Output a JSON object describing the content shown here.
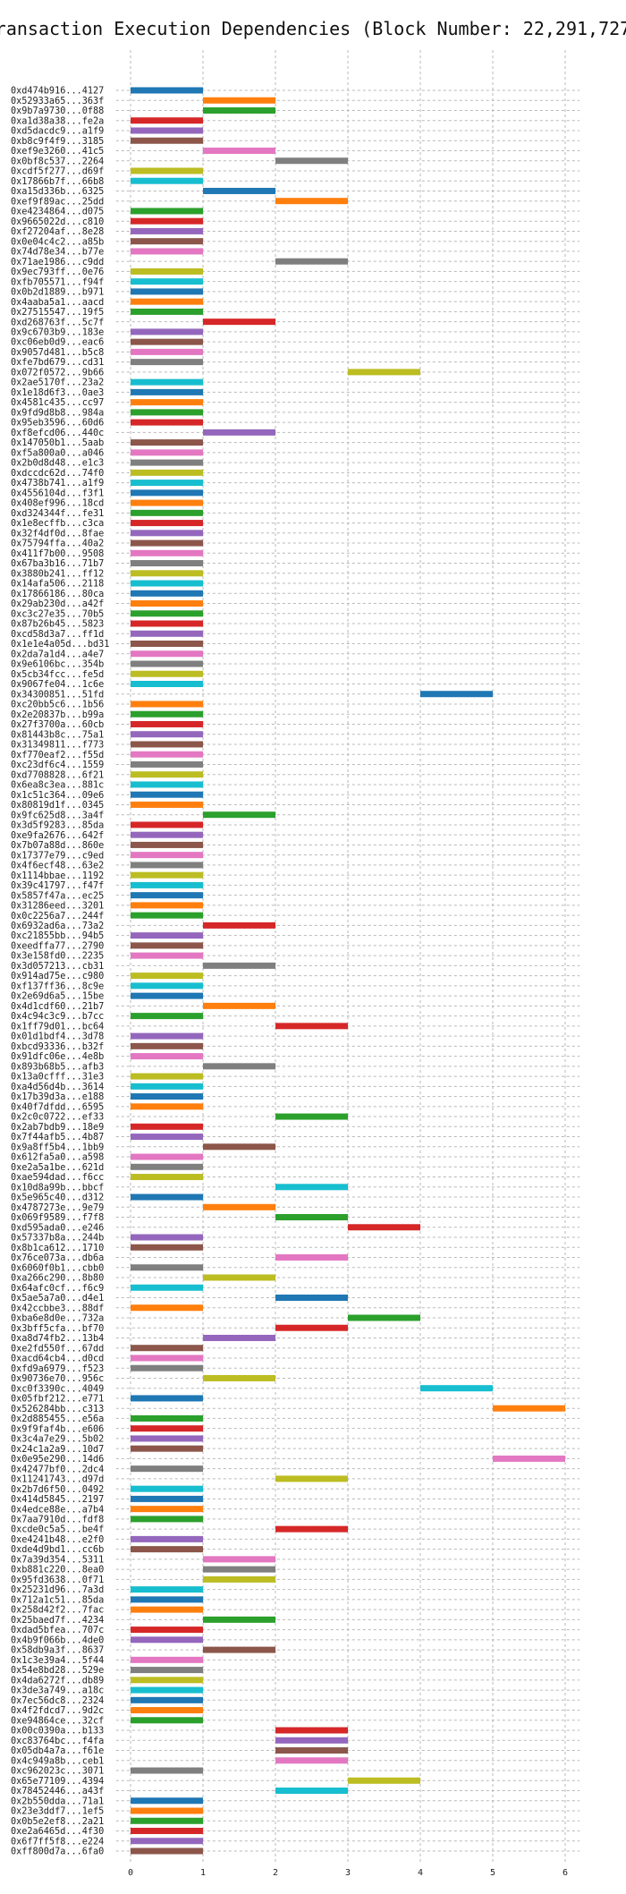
{
  "chart_data": {
    "type": "bar",
    "orientation": "horizontal-gantt",
    "title": "Transaction Execution Dependencies (Block Number: 22,291,727)",
    "xlabel": "",
    "ylabel": "",
    "xlim": [
      -0.2,
      6.2
    ],
    "xticks": [
      0,
      1,
      2,
      3,
      4,
      5,
      6
    ],
    "grid": true,
    "legend": "none",
    "colors": [
      "#1f77b4",
      "#ff7f0e",
      "#2ca02c",
      "#d62728",
      "#9467bd",
      "#8c564b",
      "#e377c2",
      "#7f7f7f",
      "#bcbd22",
      "#17becf"
    ],
    "transactions": [
      {
        "label": "0xd474b916...4127",
        "start": 0,
        "color": "#1f77b4"
      },
      {
        "label": "0x52933a65...363f",
        "start": 1,
        "color": "#ff7f0e"
      },
      {
        "label": "0x9b7a9730...0f88",
        "start": 1,
        "color": "#2ca02c"
      },
      {
        "label": "0xa1d38a38...fe2a",
        "start": 0,
        "color": "#d62728"
      },
      {
        "label": "0xd5dacdc9...a1f9",
        "start": 0,
        "color": "#9467bd"
      },
      {
        "label": "0xb8c9f4f9...3185",
        "start": 0,
        "color": "#8c564b"
      },
      {
        "label": "0xef9e3260...41c5",
        "start": 1,
        "color": "#e377c2"
      },
      {
        "label": "0x0bf8c537...2264",
        "start": 2,
        "color": "#7f7f7f"
      },
      {
        "label": "0xcdf5f277...d69f",
        "start": 0,
        "color": "#bcbd22"
      },
      {
        "label": "0x17866b7f...66b8",
        "start": 0,
        "color": "#17becf"
      },
      {
        "label": "0xa15d336b...6325",
        "start": 1,
        "color": "#1f77b4"
      },
      {
        "label": "0xef9f89ac...25dd",
        "start": 2,
        "color": "#ff7f0e"
      },
      {
        "label": "0xe4234864...d075",
        "start": 0,
        "color": "#2ca02c"
      },
      {
        "label": "0x9665022d...c810",
        "start": 0,
        "color": "#d62728"
      },
      {
        "label": "0xf27204af...8e28",
        "start": 0,
        "color": "#9467bd"
      },
      {
        "label": "0x0e04c4c2...a85b",
        "start": 0,
        "color": "#8c564b"
      },
      {
        "label": "0x74d78e34...b77e",
        "start": 0,
        "color": "#e377c2"
      },
      {
        "label": "0x71ae1986...c9dd",
        "start": 2,
        "color": "#7f7f7f"
      },
      {
        "label": "0x9ec793ff...0e76",
        "start": 0,
        "color": "#bcbd22"
      },
      {
        "label": "0xfb705571...f94f",
        "start": 0,
        "color": "#17becf"
      },
      {
        "label": "0x0b2d1889...b971",
        "start": 0,
        "color": "#1f77b4"
      },
      {
        "label": "0x4aaba5a1...aacd",
        "start": 0,
        "color": "#ff7f0e"
      },
      {
        "label": "0x27515547...19f5",
        "start": 0,
        "color": "#2ca02c"
      },
      {
        "label": "0xd268763f...5c7f",
        "start": 1,
        "color": "#d62728"
      },
      {
        "label": "0x9c6703b9...183e",
        "start": 0,
        "color": "#9467bd"
      },
      {
        "label": "0xc06eb0d9...eac6",
        "start": 0,
        "color": "#8c564b"
      },
      {
        "label": "0x9057d481...b5c8",
        "start": 0,
        "color": "#e377c2"
      },
      {
        "label": "0xfe7bd679...cd31",
        "start": 0,
        "color": "#7f7f7f"
      },
      {
        "label": "0x072f0572...9b66",
        "start": 3,
        "color": "#bcbd22"
      },
      {
        "label": "0x2ae5170f...23a2",
        "start": 0,
        "color": "#17becf"
      },
      {
        "label": "0x1e18d6f3...0ae3",
        "start": 0,
        "color": "#1f77b4"
      },
      {
        "label": "0x4581c435...cc97",
        "start": 0,
        "color": "#ff7f0e"
      },
      {
        "label": "0x9fd9d8b8...984a",
        "start": 0,
        "color": "#2ca02c"
      },
      {
        "label": "0x95eb3596...60d6",
        "start": 0,
        "color": "#d62728"
      },
      {
        "label": "0xf8efcd06...440c",
        "start": 1,
        "color": "#9467bd"
      },
      {
        "label": "0x147050b1...5aab",
        "start": 0,
        "color": "#8c564b"
      },
      {
        "label": "0xf5a800a0...a046",
        "start": 0,
        "color": "#e377c2"
      },
      {
        "label": "0x2b0d8d48...e1c3",
        "start": 0,
        "color": "#7f7f7f"
      },
      {
        "label": "0xdccdc62d...74f0",
        "start": 0,
        "color": "#bcbd22"
      },
      {
        "label": "0x4738b741...a1f9",
        "start": 0,
        "color": "#17becf"
      },
      {
        "label": "0x4556104d...f3f1",
        "start": 0,
        "color": "#1f77b4"
      },
      {
        "label": "0x408ef996...18cd",
        "start": 0,
        "color": "#ff7f0e"
      },
      {
        "label": "0xd324344f...fe31",
        "start": 0,
        "color": "#2ca02c"
      },
      {
        "label": "0x1e8ecffb...c3ca",
        "start": 0,
        "color": "#d62728"
      },
      {
        "label": "0x32f4df0d...8fae",
        "start": 0,
        "color": "#9467bd"
      },
      {
        "label": "0x75794ffa...40a2",
        "start": 0,
        "color": "#8c564b"
      },
      {
        "label": "0x411f7b00...9508",
        "start": 0,
        "color": "#e377c2"
      },
      {
        "label": "0x67ba3b16...71b7",
        "start": 0,
        "color": "#7f7f7f"
      },
      {
        "label": "0x3880b241...ff12",
        "start": 0,
        "color": "#bcbd22"
      },
      {
        "label": "0x14afa506...2118",
        "start": 0,
        "color": "#17becf"
      },
      {
        "label": "0x17866186...80ca",
        "start": 0,
        "color": "#1f77b4"
      },
      {
        "label": "0x29ab230d...a42f",
        "start": 0,
        "color": "#ff7f0e"
      },
      {
        "label": "0xc3c27e35...70b5",
        "start": 0,
        "color": "#2ca02c"
      },
      {
        "label": "0x87b26b45...5823",
        "start": 0,
        "color": "#d62728"
      },
      {
        "label": "0xcd58d3a7...ff1d",
        "start": 0,
        "color": "#9467bd"
      },
      {
        "label": "0x1e1e4a05d...bd31",
        "start": 0,
        "color": "#8c564b"
      },
      {
        "label": "0x2da7a1d4...a4e7",
        "start": 0,
        "color": "#e377c2"
      },
      {
        "label": "0x9e6106bc...354b",
        "start": 0,
        "color": "#7f7f7f"
      },
      {
        "label": "0x5cb34fcc...fe5d",
        "start": 0,
        "color": "#bcbd22"
      },
      {
        "label": "0x9067fe04...1c6e",
        "start": 0,
        "color": "#17becf"
      },
      {
        "label": "0x34300851...51fd",
        "start": 4,
        "color": "#1f77b4"
      },
      {
        "label": "0xc20bb5c6...1b56",
        "start": 0,
        "color": "#ff7f0e"
      },
      {
        "label": "0x2e20837b...b99a",
        "start": 0,
        "color": "#2ca02c"
      },
      {
        "label": "0x27f3700a...60cb",
        "start": 0,
        "color": "#d62728"
      },
      {
        "label": "0x81443b8c...75a1",
        "start": 0,
        "color": "#9467bd"
      },
      {
        "label": "0x31349811...f773",
        "start": 0,
        "color": "#8c564b"
      },
      {
        "label": "0xf770eaf2...f55d",
        "start": 0,
        "color": "#e377c2"
      },
      {
        "label": "0xc23df6c4...1559",
        "start": 0,
        "color": "#7f7f7f"
      },
      {
        "label": "0xd7708828...6f21",
        "start": 0,
        "color": "#bcbd22"
      },
      {
        "label": "0x6ea8c3ea...881c",
        "start": 0,
        "color": "#17becf"
      },
      {
        "label": "0x1c51c364...09e6",
        "start": 0,
        "color": "#1f77b4"
      },
      {
        "label": "0x80819d1f...0345",
        "start": 0,
        "color": "#ff7f0e"
      },
      {
        "label": "0x9fc625d8...3a4f",
        "start": 1,
        "color": "#2ca02c"
      },
      {
        "label": "0x3d5f9283...85da",
        "start": 0,
        "color": "#d62728"
      },
      {
        "label": "0xe9fa2676...642f",
        "start": 0,
        "color": "#9467bd"
      },
      {
        "label": "0x7b07a88d...860e",
        "start": 0,
        "color": "#8c564b"
      },
      {
        "label": "0x17377e79...c9ed",
        "start": 0,
        "color": "#e377c2"
      },
      {
        "label": "0x4f6ecf48...63e2",
        "start": 0,
        "color": "#7f7f7f"
      },
      {
        "label": "0x1114bbae...1192",
        "start": 0,
        "color": "#bcbd22"
      },
      {
        "label": "0x39c41797...f47f",
        "start": 0,
        "color": "#17becf"
      },
      {
        "label": "0x5857f47a...ec25",
        "start": 0,
        "color": "#1f77b4"
      },
      {
        "label": "0x31286eed...3201",
        "start": 0,
        "color": "#ff7f0e"
      },
      {
        "label": "0x0c2256a7...244f",
        "start": 0,
        "color": "#2ca02c"
      },
      {
        "label": "0x6932ad6a...73a2",
        "start": 1,
        "color": "#d62728"
      },
      {
        "label": "0xc21855bb...94b5",
        "start": 0,
        "color": "#9467bd"
      },
      {
        "label": "0xeedffa77...2790",
        "start": 0,
        "color": "#8c564b"
      },
      {
        "label": "0x3e158fd0...2235",
        "start": 0,
        "color": "#e377c2"
      },
      {
        "label": "0x3d057213...cb31",
        "start": 1,
        "color": "#7f7f7f"
      },
      {
        "label": "0x914ad75e...c980",
        "start": 0,
        "color": "#bcbd22"
      },
      {
        "label": "0xf137ff36...8c9e",
        "start": 0,
        "color": "#17becf"
      },
      {
        "label": "0x2e69d6a5...15be",
        "start": 0,
        "color": "#1f77b4"
      },
      {
        "label": "0x4d1cdf60...21b7",
        "start": 1,
        "color": "#ff7f0e"
      },
      {
        "label": "0x4c94c3c9...b7cc",
        "start": 0,
        "color": "#2ca02c"
      },
      {
        "label": "0x1ff79d01...bc64",
        "start": 2,
        "color": "#d62728"
      },
      {
        "label": "0x01d1bdf4...3d78",
        "start": 0,
        "color": "#9467bd"
      },
      {
        "label": "0xbcd93336...b32f",
        "start": 0,
        "color": "#8c564b"
      },
      {
        "label": "0x91dfc06e...4e8b",
        "start": 0,
        "color": "#e377c2"
      },
      {
        "label": "0x893b68b5...afb3",
        "start": 1,
        "color": "#7f7f7f"
      },
      {
        "label": "0x13a0cfff...31e3",
        "start": 0,
        "color": "#bcbd22"
      },
      {
        "label": "0xa4d56d4b...3614",
        "start": 0,
        "color": "#17becf"
      },
      {
        "label": "0x17b39d3a...e188",
        "start": 0,
        "color": "#1f77b4"
      },
      {
        "label": "0x40f7dfdd...6595",
        "start": 0,
        "color": "#ff7f0e"
      },
      {
        "label": "0x2c0c0722...ef33",
        "start": 2,
        "color": "#2ca02c"
      },
      {
        "label": "0x2ab7bdb9...18e9",
        "start": 0,
        "color": "#d62728"
      },
      {
        "label": "0x7f44afb5...4b87",
        "start": 0,
        "color": "#9467bd"
      },
      {
        "label": "0x9a8ff5b4...1bb9",
        "start": 1,
        "color": "#8c564b"
      },
      {
        "label": "0x612fa5a0...a598",
        "start": 0,
        "color": "#e377c2"
      },
      {
        "label": "0xe2a5a1be...621d",
        "start": 0,
        "color": "#7f7f7f"
      },
      {
        "label": "0xae594dad...f6cc",
        "start": 0,
        "color": "#bcbd22"
      },
      {
        "label": "0x10d8a99b...bbcf",
        "start": 2,
        "color": "#17becf"
      },
      {
        "label": "0x5e965c40...d312",
        "start": 0,
        "color": "#1f77b4"
      },
      {
        "label": "0x4787273e...9e79",
        "start": 1,
        "color": "#ff7f0e"
      },
      {
        "label": "0x069f9589...f7f8",
        "start": 2,
        "color": "#2ca02c"
      },
      {
        "label": "0xd595ada0...e246",
        "start": 3,
        "color": "#d62728"
      },
      {
        "label": "0x57337b8a...244b",
        "start": 0,
        "color": "#9467bd"
      },
      {
        "label": "0x8b1ca612...1710",
        "start": 0,
        "color": "#8c564b"
      },
      {
        "label": "0x76ce073a...db6a",
        "start": 2,
        "color": "#e377c2"
      },
      {
        "label": "0x6060f0b1...cbb0",
        "start": 0,
        "color": "#7f7f7f"
      },
      {
        "label": "0xa266c290...8b80",
        "start": 1,
        "color": "#bcbd22"
      },
      {
        "label": "0x64afc0cf...f6c9",
        "start": 0,
        "color": "#17becf"
      },
      {
        "label": "0x5ae5a7a0...d4e1",
        "start": 2,
        "color": "#1f77b4"
      },
      {
        "label": "0x42ccbbe3...88df",
        "start": 0,
        "color": "#ff7f0e"
      },
      {
        "label": "0xba6e8d0e...732a",
        "start": 3,
        "color": "#2ca02c"
      },
      {
        "label": "0x3bff5cfa...bf70",
        "start": 2,
        "color": "#d62728"
      },
      {
        "label": "0xa8d74fb2...13b4",
        "start": 1,
        "color": "#9467bd"
      },
      {
        "label": "0xe2fd550f...67dd",
        "start": 0,
        "color": "#8c564b"
      },
      {
        "label": "0xacd64cb4...d0cd",
        "start": 0,
        "color": "#e377c2"
      },
      {
        "label": "0xfd9a6979...f523",
        "start": 0,
        "color": "#7f7f7f"
      },
      {
        "label": "0x90736e70...956c",
        "start": 1,
        "color": "#bcbd22"
      },
      {
        "label": "0xc0f3390c...4049",
        "start": 4,
        "color": "#17becf"
      },
      {
        "label": "0x05fbf212...e771",
        "start": 0,
        "color": "#1f77b4"
      },
      {
        "label": "0x526284bb...c313",
        "start": 5,
        "color": "#ff7f0e"
      },
      {
        "label": "0x2d885455...e56a",
        "start": 0,
        "color": "#2ca02c"
      },
      {
        "label": "0x9f9faf4b...e606",
        "start": 0,
        "color": "#d62728"
      },
      {
        "label": "0x3c4a7e29...5b02",
        "start": 0,
        "color": "#9467bd"
      },
      {
        "label": "0x24c1a2a9...10d7",
        "start": 0,
        "color": "#8c564b"
      },
      {
        "label": "0x0e95e290...14d6",
        "start": 5,
        "color": "#e377c2"
      },
      {
        "label": "0x42477bf0...2dc4",
        "start": 0,
        "color": "#7f7f7f"
      },
      {
        "label": "0x11241743...d97d",
        "start": 2,
        "color": "#bcbd22"
      },
      {
        "label": "0x2b7d6f50...0492",
        "start": 0,
        "color": "#17becf"
      },
      {
        "label": "0x414d5845...2197",
        "start": 0,
        "color": "#1f77b4"
      },
      {
        "label": "0x4edce88e...a7b4",
        "start": 0,
        "color": "#ff7f0e"
      },
      {
        "label": "0x7aa7910d...fdf8",
        "start": 0,
        "color": "#2ca02c"
      },
      {
        "label": "0xcde0c5a5...be4f",
        "start": 2,
        "color": "#d62728"
      },
      {
        "label": "0xe4241b48...e2f0",
        "start": 0,
        "color": "#9467bd"
      },
      {
        "label": "0xde4d9bd1...cc6b",
        "start": 0,
        "color": "#8c564b"
      },
      {
        "label": "0x7a39d354...5311",
        "start": 1,
        "color": "#e377c2"
      },
      {
        "label": "0xb881c220...8ea0",
        "start": 1,
        "color": "#7f7f7f"
      },
      {
        "label": "0x95fd3638...0f71",
        "start": 1,
        "color": "#bcbd22"
      },
      {
        "label": "0x25231d96...7a3d",
        "start": 0,
        "color": "#17becf"
      },
      {
        "label": "0x712a1c51...85da",
        "start": 0,
        "color": "#1f77b4"
      },
      {
        "label": "0x258d42f2...7fac",
        "start": 0,
        "color": "#ff7f0e"
      },
      {
        "label": "0x25baed7f...4234",
        "start": 1,
        "color": "#2ca02c"
      },
      {
        "label": "0xdad5bfea...707c",
        "start": 0,
        "color": "#d62728"
      },
      {
        "label": "0x4b9f066b...4de0",
        "start": 0,
        "color": "#9467bd"
      },
      {
        "label": "0x58db9a3f...8637",
        "start": 1,
        "color": "#8c564b"
      },
      {
        "label": "0x1c3e39a4...5f44",
        "start": 0,
        "color": "#e377c2"
      },
      {
        "label": "0x54e8bd28...529e",
        "start": 0,
        "color": "#7f7f7f"
      },
      {
        "label": "0x4da6272f...db89",
        "start": 0,
        "color": "#bcbd22"
      },
      {
        "label": "0x3de3a749...a18c",
        "start": 0,
        "color": "#17becf"
      },
      {
        "label": "0x7ec56dc8...2324",
        "start": 0,
        "color": "#1f77b4"
      },
      {
        "label": "0x4f2fdcd7...9d2c",
        "start": 0,
        "color": "#ff7f0e"
      },
      {
        "label": "0xe94864ce...32cf",
        "start": 0,
        "color": "#2ca02c"
      },
      {
        "label": "0x00c0390a...b133",
        "start": 2,
        "color": "#d62728"
      },
      {
        "label": "0xc83764bc...f4fa",
        "start": 2,
        "color": "#9467bd"
      },
      {
        "label": "0x05db4a7a...f61e",
        "start": 2,
        "color": "#8c564b"
      },
      {
        "label": "0x4c949a8b...ceb1",
        "start": 2,
        "color": "#e377c2"
      },
      {
        "label": "0xc962023c...3071",
        "start": 0,
        "color": "#7f7f7f"
      },
      {
        "label": "0x65e77109...4394",
        "start": 3,
        "color": "#bcbd22"
      },
      {
        "label": "0x78452446...a43f",
        "start": 2,
        "color": "#17becf"
      },
      {
        "label": "0x2b550dda...71a1",
        "start": 0,
        "color": "#1f77b4"
      },
      {
        "label": "0x23e3ddf7...1ef5",
        "start": 0,
        "color": "#ff7f0e"
      },
      {
        "label": "0x0b5e2ef8...2a21",
        "start": 0,
        "color": "#2ca02c"
      },
      {
        "label": "0xe2a6465d...4f30",
        "start": 0,
        "color": "#d62728"
      },
      {
        "label": "0x6f7ff5f8...e224",
        "start": 0,
        "color": "#9467bd"
      },
      {
        "label": "0xff800d7a...6fa0",
        "start": 0,
        "color": "#8c564b"
      }
    ]
  }
}
